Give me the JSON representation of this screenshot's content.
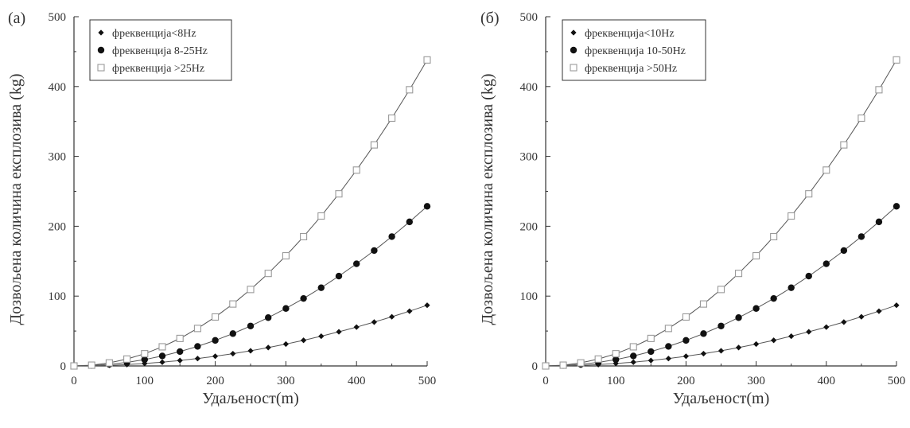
{
  "chart_data": [
    {
      "type": "line",
      "panel_label": "(а)",
      "xlabel": "Удаљеност(m)",
      "ylabel": "Дозвољена количина експлозива (kg)",
      "xlim": [
        0,
        500
      ],
      "ylim": [
        0,
        500
      ],
      "x_ticks": [
        0,
        100,
        200,
        300,
        400,
        500
      ],
      "y_ticks": [
        0,
        100,
        200,
        300,
        400,
        500
      ],
      "grid": false,
      "legend_position": "top-left",
      "x": [
        0,
        25,
        50,
        75,
        100,
        125,
        150,
        175,
        200,
        225,
        250,
        275,
        300,
        325,
        350,
        375,
        400,
        425,
        450,
        475,
        500
      ],
      "series": [
        {
          "name": "фреквенција<8Hz",
          "marker": "diamond",
          "values": [
            0,
            0.2,
            0.9,
            2.0,
            3.5,
            5.4,
            7.8,
            10.6,
            13.9,
            17.6,
            21.7,
            26.3,
            31.3,
            36.7,
            42.6,
            48.9,
            55.6,
            62.8,
            70.4,
            78.4,
            86.9
          ]
        },
        {
          "name": "фреквенција 8-25Hz",
          "marker": "circle",
          "values": [
            0,
            0.6,
            2.3,
            5.1,
            9.1,
            14.3,
            20.6,
            28.0,
            36.6,
            46.3,
            57.2,
            69.2,
            82.3,
            96.6,
            112.0,
            128.6,
            146.3,
            165.2,
            185.2,
            206.3,
            228.6
          ]
        },
        {
          "name": "фреквенција >25Hz",
          "marker": "open-square",
          "values": [
            0,
            1.1,
            4.4,
            9.9,
            17.5,
            27.4,
            39.4,
            53.7,
            70.1,
            88.7,
            109.5,
            132.5,
            157.7,
            185.1,
            214.7,
            246.4,
            280.4,
            316.5,
            354.8,
            395.4,
            438.1
          ]
        }
      ]
    },
    {
      "type": "line",
      "panel_label": "(б)",
      "xlabel": "Удаљеност(m)",
      "ylabel": "Дозвољена количина експлозива (kg)",
      "xlim": [
        0,
        500
      ],
      "ylim": [
        0,
        500
      ],
      "x_ticks": [
        0,
        100,
        200,
        300,
        400,
        500
      ],
      "y_ticks": [
        0,
        100,
        200,
        300,
        400,
        500
      ],
      "grid": false,
      "legend_position": "top-left",
      "x": [
        0,
        25,
        50,
        75,
        100,
        125,
        150,
        175,
        200,
        225,
        250,
        275,
        300,
        325,
        350,
        375,
        400,
        425,
        450,
        475,
        500
      ],
      "series": [
        {
          "name": "фреквенција<10Hz",
          "marker": "diamond",
          "values": [
            0,
            0.2,
            0.9,
            2.0,
            3.5,
            5.4,
            7.8,
            10.6,
            13.9,
            17.6,
            21.7,
            26.3,
            31.3,
            36.7,
            42.6,
            48.9,
            55.6,
            62.8,
            70.4,
            78.4,
            86.9
          ]
        },
        {
          "name": "фреквенција 10-50Hz",
          "marker": "circle",
          "values": [
            0,
            0.6,
            2.3,
            5.1,
            9.1,
            14.3,
            20.6,
            28.0,
            36.6,
            46.3,
            57.2,
            69.2,
            82.3,
            96.6,
            112.0,
            128.6,
            146.3,
            165.2,
            185.2,
            206.3,
            228.6
          ]
        },
        {
          "name": "фреквенција >50Hz",
          "marker": "open-square",
          "values": [
            0,
            1.1,
            4.4,
            9.9,
            17.5,
            27.4,
            39.4,
            53.7,
            70.1,
            88.7,
            109.5,
            132.5,
            157.7,
            185.1,
            214.7,
            246.4,
            280.4,
            316.5,
            354.8,
            395.4,
            438.1
          ]
        }
      ]
    }
  ],
  "colors": {
    "axis": "#333333",
    "curve": "#555555",
    "diamond_fill": "#111111",
    "circle_fill": "#111111",
    "square_stroke": "#9a9a9a",
    "square_fill": "#ffffff"
  }
}
